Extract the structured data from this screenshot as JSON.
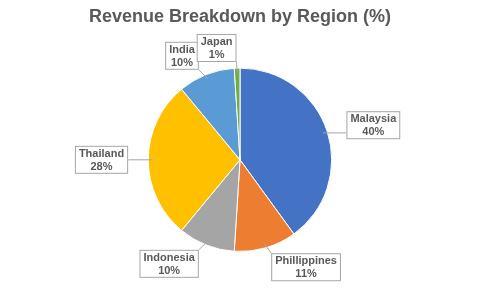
{
  "chart_data": {
    "type": "pie",
    "title": "Revenue Breakdown by Region (%)",
    "categories": [
      "Malaysia",
      "Phillippines",
      "Indonesia",
      "Thailand",
      "India",
      "Japan"
    ],
    "values": [
      40,
      11,
      10,
      28,
      10,
      1
    ],
    "value_labels": [
      "40%",
      "11%",
      "10%",
      "28%",
      "10%",
      "1%"
    ],
    "colors": [
      "#4472c4",
      "#ed7d31",
      "#a5a5a5",
      "#ffc000",
      "#5b9bd5",
      "#70ad47"
    ],
    "data_labels": true
  }
}
